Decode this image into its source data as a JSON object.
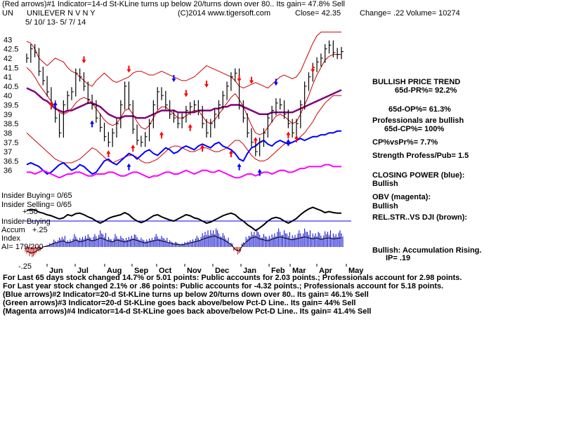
{
  "header": {
    "line1": "(Red arrows)#1 Indicator=14-d St-KLine turns up below 20/turns down over 80.. Its gain= 47.8% Sell",
    "ticker": "UN",
    "company": "UNILEVER N V N Y",
    "copyright": "(C)2014 www.tigersoft.com",
    "close": "Close=  42.35",
    "change": "Change= .22",
    "volume": "Volume= 10274",
    "date_range": "5/ 10/ 13- 5/ 7/ 14"
  },
  "side_panel": {
    "trend_title": "BULLISH PRICE TREND",
    "pr65": "65d-PR%= 92.2%",
    "op65": "65d-OP%= 61.3%",
    "prof_bullish": "Professionals are bullish",
    "cp65": "65d-CP%= 100%",
    "cpvspr": "CP%vsPr%=  7.7%",
    "strength": "Strength Profess/Pub= 1.5",
    "closing_power_label": "CLOSING POWER (blue):",
    "closing_power_state": "Bullish",
    "obv_label": "OBV (magenta):",
    "obv_state": "Bullish",
    "relstr_label": "REL.STR..VS DJI (brown):",
    "accum_state": "Bullish: Accumulation Rising.",
    "ip": "IP=  .19"
  },
  "left_labels": {
    "insider_buying": "Insider Buying= 0/65",
    "insider_selling": "Insider Selling= 0/65",
    "rs_value": "+.50",
    "insider_buying2": "Insider Buying",
    "accum": "Accum",
    "accum_value": "+.25",
    "index": "Index",
    "ai": "AI= 179/200",
    "minus25": "-.25"
  },
  "footer": {
    "line1": "For Last 65 days stock changed  14.7% or  5.01 points:  Public accounts for  2.03 points.;  Professionals account for  2.98 points.",
    "line2": "For Last year stock changed  2.1% or  .86 points:  Public accounts for -4.32 points.;  Professionals account for  5.18 points.",
    "line3": "(Blue arrows)#2 Indicator=20-d St-KLine turns up below 20/turns down over 80.. Its gain= 46.1% Sell",
    "line4": "(Green arrows)#3 Indicator=20-d St-KLine goes back above/below Pct-D Line.. Its gain= 44% Sell",
    "line5": "(Magenta arrows)#4 Indicator=14-d St-KLine goes back above/below Pct-D Line.. Its gain= 41.4% Sell"
  },
  "colors": {
    "price": "#000000",
    "bollinger": "#cc0000",
    "moving_average": "#800080",
    "closing_power": "#0000ff",
    "obv": "#ff00ff",
    "accum_bars": "#0000cc",
    "accum_neg": "#cc0000",
    "up_arrow": "#ff0000",
    "down_arrow": "#ff0000",
    "blue_arrow": "#0000ff",
    "zero_line": "#0000ff"
  },
  "chart_data": {
    "type": "line",
    "ylim": [
      35.5,
      43.5
    ],
    "y_ticks": [
      "43",
      "42.5",
      "42",
      "41.5",
      "41",
      "40.5",
      "40",
      "39.5",
      "39",
      "38.5",
      "38",
      "37.5",
      "37",
      "36.5",
      "36"
    ],
    "x_ticks": [
      "Jun",
      "Jul",
      "Aug",
      "Sep",
      "Oct",
      "Nov",
      "Dec",
      "Jan",
      "Feb",
      "Mar",
      "Apr",
      "May"
    ],
    "price_series": [
      42.0,
      42.5,
      42.3,
      41.3,
      40.8,
      40.2,
      39.5,
      38.8,
      38.0,
      39.5,
      40.0,
      40.2,
      41.2,
      41.0,
      40.5,
      39.8,
      39.5,
      38.8,
      38.3,
      37.8,
      37.5,
      38.0,
      38.5,
      39.5,
      40.5,
      39.5,
      38.2,
      37.6,
      37.5,
      37.8,
      38.5,
      39.5,
      40.2,
      40.0,
      39.5,
      39.0,
      38.8,
      38.5,
      38.8,
      39.2,
      39.4,
      39.5,
      39.2,
      38.5,
      38.0,
      38.5,
      39.0,
      39.5,
      40.0,
      40.5,
      41.0,
      41.2,
      39.5,
      38.8,
      38.0,
      37.5,
      37.0,
      37.5,
      38.0,
      38.8,
      39.2,
      39.6,
      39.5,
      39.0,
      38.5,
      38.0,
      38.5,
      39.5,
      40.5,
      41.0,
      41.5,
      41.8,
      42.0,
      42.5,
      42.7,
      42.3,
      42.2,
      42.35
    ],
    "series": [
      {
        "values": [
          42.0,
          42.5,
          42.3,
          41.3,
          40.8,
          40.2,
          39.5,
          38.8,
          38.0,
          39.5,
          40.0,
          40.2,
          41.2,
          41.0,
          40.5,
          39.8,
          39.5,
          38.8,
          38.3,
          37.8,
          37.5,
          38.0,
          38.5,
          39.5,
          40.5,
          39.5,
          38.2,
          37.6,
          37.5,
          37.8,
          38.5,
          39.5,
          40.2,
          40.0,
          39.5,
          39.0,
          38.8,
          38.5,
          38.8,
          39.2,
          39.4,
          39.5,
          39.2,
          38.5,
          38.0,
          38.5,
          39.0,
          39.5,
          40.0,
          40.5,
          41.0,
          41.2,
          39.5,
          38.8,
          38.0,
          37.5,
          37.0,
          37.5,
          38.0,
          38.8,
          39.2,
          39.6,
          39.5,
          39.0,
          38.5,
          38.0,
          38.5,
          39.5,
          40.5,
          41.0,
          41.5,
          41.8,
          42.0,
          42.5,
          42.7,
          42.3,
          42.2,
          42.35
        ]
      },
      {
        "values": [
          40.4,
          40.3,
          40.2,
          40.0,
          39.8,
          39.7,
          39.5,
          39.3,
          39.2,
          39.1,
          39.2,
          39.2,
          39.3,
          39.4,
          39.5,
          39.6,
          39.6,
          39.5,
          39.4,
          39.2,
          39.0,
          38.9,
          38.8,
          38.8,
          38.9,
          38.9,
          38.9,
          38.8,
          38.8,
          38.8,
          38.9,
          39.0,
          39.1,
          39.2,
          39.2,
          39.2,
          39.2,
          39.1,
          39.1,
          39.1,
          39.1,
          39.1,
          39.2,
          39.2,
          39.2,
          39.2,
          39.3,
          39.3,
          39.4,
          39.4,
          39.5,
          39.5,
          39.5,
          39.4,
          39.3,
          39.2,
          39.1,
          39.0,
          39.0,
          39.0,
          39.1,
          39.1,
          39.1,
          39.1,
          39.1,
          39.1,
          39.2,
          39.3,
          39.4,
          39.5,
          39.6,
          39.7,
          39.8,
          39.9,
          40.0,
          40.1,
          40.2,
          40.3
        ]
      },
      {
        "values": [
          42.9,
          42.8,
          42.5,
          42.0,
          41.8,
          41.6,
          41.8,
          42.0,
          41.9,
          41.8,
          41.5,
          41.3,
          41.2,
          41.0,
          40.8,
          40.6,
          40.5,
          40.8,
          41.0,
          41.2,
          41.0,
          40.8,
          40.7,
          40.8,
          40.9,
          41.0,
          41.2,
          41.3,
          41.3,
          41.2,
          41.1,
          41.1,
          41.2,
          41.3,
          41.2,
          41.1,
          41.0,
          40.9,
          40.8,
          40.8,
          40.9,
          41.0,
          41.2,
          41.4,
          41.6,
          41.5,
          41.4,
          41.3,
          41.2,
          41.1,
          41.0,
          40.8,
          40.5,
          40.4,
          40.5,
          40.6,
          40.7,
          40.6,
          40.5,
          40.4,
          40.6,
          40.8,
          41.0,
          41.1,
          41.0,
          40.9,
          41.0,
          41.3,
          41.8,
          42.3,
          42.8,
          43.2,
          43.4,
          43.4,
          43.4,
          43.4,
          43.4,
          43.4
        ]
      },
      {
        "values": [
          38.0,
          37.8,
          37.6,
          37.4,
          37.2,
          37.0,
          36.8,
          36.6,
          36.5,
          36.4,
          36.4,
          36.4,
          36.5,
          36.6,
          36.8,
          37.0,
          37.2,
          37.1,
          36.9,
          36.7,
          36.5,
          36.4,
          36.5,
          36.6,
          36.7,
          36.8,
          36.8,
          36.7,
          36.5,
          36.4,
          36.4,
          36.5,
          36.6,
          36.8,
          37.0,
          37.2,
          37.3,
          37.3,
          37.2,
          37.1,
          37.0,
          37.0,
          37.1,
          37.2,
          37.2,
          37.1,
          37.0,
          37.0,
          37.1,
          37.2,
          37.4,
          37.6,
          37.6,
          37.4,
          37.1,
          36.8,
          36.6,
          36.5,
          36.5,
          36.6,
          36.8,
          37.0,
          37.2,
          37.4,
          37.5,
          37.5,
          37.6,
          37.8,
          38.0,
          38.3,
          38.6,
          39.0,
          39.3,
          39.6,
          39.8,
          40.0,
          40.0,
          40.0
        ]
      },
      {
        "values": [
          41.5,
          41.3,
          41.0,
          40.6,
          40.3,
          40.0,
          39.7,
          39.4,
          39.1,
          39.0,
          39.1,
          39.3,
          39.6,
          39.8,
          39.9,
          39.8,
          39.6,
          39.3,
          39.0,
          38.7,
          38.5,
          38.4,
          38.5,
          38.8,
          39.2,
          39.3,
          39.0,
          38.6,
          38.3,
          38.2,
          38.4,
          38.8,
          39.2,
          39.4,
          39.4,
          39.2,
          39.0,
          38.8,
          38.8,
          38.9,
          39.1,
          39.2,
          39.2,
          38.9,
          38.6,
          38.5,
          38.7,
          39.0,
          39.3,
          39.6,
          39.9,
          40.1,
          39.8,
          39.4,
          38.9,
          38.4,
          38.0,
          37.9,
          38.0,
          38.3,
          38.6,
          38.9,
          39.0,
          38.9,
          38.7,
          38.5,
          38.6,
          39.0,
          39.5,
          40.0,
          40.6,
          41.1,
          41.5,
          41.9,
          42.1,
          42.2,
          42.2,
          42.2
        ]
      }
    ],
    "closing_power": [
      36.3,
      36.4,
      36.3,
      36.2,
      36.0,
      35.8,
      35.9,
      36.1,
      36.3,
      36.4,
      36.2,
      36.0,
      36.1,
      36.3,
      36.2,
      36.0,
      35.8,
      35.9,
      36.2,
      36.5,
      36.6,
      36.4,
      36.3,
      36.5,
      36.7,
      36.9,
      36.8,
      36.6,
      36.8,
      37.0,
      37.1,
      36.9,
      36.8,
      37.0,
      37.2,
      37.1,
      36.9,
      37.0,
      37.2,
      37.3,
      37.2,
      37.1,
      37.3,
      37.4,
      37.3,
      37.2,
      37.4,
      37.5,
      37.3,
      37.2,
      37.1,
      36.9,
      36.6,
      36.5,
      36.9,
      37.2,
      37.3,
      37.5,
      37.6,
      37.4,
      37.3,
      37.5,
      37.6,
      37.5,
      37.4,
      37.5,
      37.6,
      37.7,
      37.6,
      37.7,
      37.8,
      37.8,
      37.9,
      37.9,
      38.0,
      38.0,
      38.1,
      38.1
    ],
    "obv": [
      35.9,
      35.9,
      35.8,
      35.9,
      36.0,
      35.9,
      35.8,
      35.7,
      35.6,
      35.7,
      35.8,
      35.8,
      35.9,
      35.9,
      35.8,
      35.7,
      35.7,
      35.8,
      35.8,
      35.8,
      35.9,
      35.9,
      35.8,
      35.7,
      35.7,
      35.8,
      35.9,
      35.9,
      35.8,
      35.7,
      35.6,
      35.7,
      35.7,
      35.8,
      35.9,
      35.9,
      35.8,
      35.8,
      35.9,
      36.0,
      35.9,
      35.8,
      35.9,
      36.0,
      36.0,
      35.9,
      35.9,
      36.0,
      35.9,
      35.8,
      35.7,
      35.6,
      35.6,
      35.7,
      35.8,
      35.8,
      35.7,
      35.8,
      35.9,
      35.9,
      35.8,
      35.9,
      36.0,
      36.0,
      35.9,
      35.9,
      36.0,
      36.1,
      36.1,
      36.2,
      36.2,
      36.2,
      36.2,
      36.3,
      36.3,
      36.2,
      36.2,
      36.2
    ],
    "rel_strength": [
      0.6,
      0.62,
      0.61,
      0.57,
      0.55,
      0.52,
      0.5,
      0.47,
      0.44,
      0.46,
      0.52,
      0.5,
      0.54,
      0.55,
      0.52,
      0.48,
      0.45,
      0.4,
      0.36,
      0.4,
      0.45,
      0.48,
      0.5,
      0.52,
      0.56,
      0.52,
      0.45,
      0.4,
      0.37,
      0.4,
      0.45,
      0.5,
      0.52,
      0.48,
      0.45,
      0.42,
      0.4,
      0.44,
      0.48,
      0.52,
      0.5,
      0.46,
      0.44,
      0.4,
      0.36,
      0.38,
      0.42,
      0.46,
      0.5,
      0.53,
      0.55,
      0.52,
      0.45,
      0.4,
      0.33,
      0.28,
      0.22,
      0.27,
      0.33,
      0.4,
      0.45,
      0.47,
      0.45,
      0.4,
      0.36,
      0.4,
      0.45,
      0.52,
      0.58,
      0.63,
      0.66,
      0.63,
      0.6,
      0.56,
      0.58,
      0.56,
      0.55,
      0.55
    ],
    "accum_index": [
      -0.08,
      -0.12,
      -0.1,
      -0.05,
      0.0,
      0.02,
      0.05,
      0.08,
      0.1,
      0.12,
      0.08,
      0.1,
      0.14,
      0.1,
      0.12,
      0.15,
      0.12,
      0.14,
      0.18,
      0.15,
      0.12,
      0.1,
      0.14,
      0.12,
      0.1,
      0.12,
      0.15,
      0.13,
      0.1,
      0.08,
      0.1,
      0.12,
      0.14,
      0.12,
      0.1,
      0.08,
      0.06,
      0.05,
      0.04,
      0.06,
      0.08,
      0.1,
      0.12,
      0.15,
      0.18,
      0.2,
      0.22,
      0.18,
      0.15,
      0.1,
      0.05,
      -0.05,
      -0.08,
      0.05,
      0.12,
      0.18,
      0.2,
      0.16,
      0.14,
      0.12,
      0.15,
      0.18,
      0.2,
      0.18,
      0.16,
      0.14,
      0.16,
      0.18,
      0.2,
      0.18,
      0.16,
      0.18,
      0.15,
      0.17,
      0.18,
      0.16,
      0.17,
      0.18
    ],
    "red_arrows_down": [
      [
        14,
        41.8
      ],
      [
        25,
        41.3
      ],
      [
        39,
        40.0
      ],
      [
        44,
        40.5
      ],
      [
        52,
        40.8
      ],
      [
        55,
        40.7
      ],
      [
        70,
        41.3
      ]
    ],
    "red_arrows_up": [
      [
        6,
        39.6
      ],
      [
        20,
        37.0
      ],
      [
        26,
        37.3
      ],
      [
        33,
        38.0
      ],
      [
        40,
        38.4
      ],
      [
        43,
        37.3
      ],
      [
        50,
        37.0
      ],
      [
        56,
        37.7
      ],
      [
        64,
        38.0
      ],
      [
        66,
        37.8
      ]
    ],
    "blue_arrows_down": [
      [
        36,
        40.8
      ],
      [
        61,
        40.6
      ]
    ],
    "blue_arrows_up": [
      [
        7,
        39.6
      ],
      [
        16,
        38.6
      ],
      [
        25,
        36.3
      ],
      [
        52,
        36.3
      ],
      [
        57,
        36.0
      ],
      [
        64,
        37.6
      ]
    ]
  }
}
